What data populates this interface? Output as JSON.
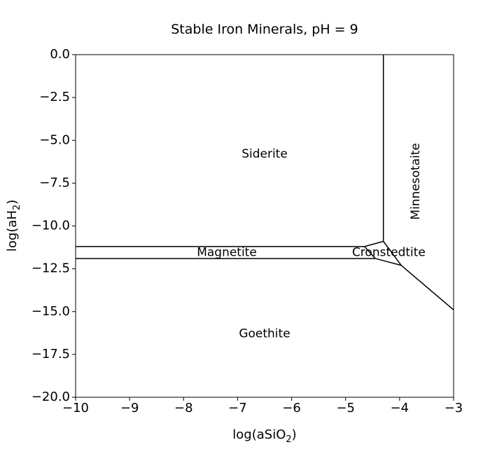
{
  "chart_data": {
    "type": "phase-diagram",
    "title": "Stable Iron Minerals, pH = 9",
    "xlabel_main": "log(aSiO",
    "xlabel_sub": "2",
    "xlabel_end": ")",
    "ylabel_main": "log(aH",
    "ylabel_sub": "2",
    "ylabel_end": ")",
    "xlim": [
      -10,
      -3
    ],
    "ylim": [
      -20,
      0
    ],
    "xticks": [
      -10,
      -9,
      -8,
      -7,
      -6,
      -5,
      -4,
      -3
    ],
    "xtick_labels": [
      "−10",
      "−9",
      "−8",
      "−7",
      "−6",
      "−5",
      "−4",
      "−3"
    ],
    "yticks": [
      0,
      -2.5,
      -5,
      -7.5,
      -10,
      -12.5,
      -15,
      -17.5,
      -20
    ],
    "ytick_labels": [
      "0.0",
      "−2.5",
      "−5.0",
      "−7.5",
      "−10.0",
      "−12.5",
      "−15.0",
      "−17.5",
      "−20.0"
    ],
    "boundaries": [
      [
        [
          -10,
          -11.2
        ],
        [
          -4.65,
          -11.2
        ]
      ],
      [
        [
          -10,
          -11.9
        ],
        [
          -4.45,
          -11.9
        ]
      ],
      [
        [
          -4.3,
          0
        ],
        [
          -4.3,
          -10.9
        ]
      ],
      [
        [
          -4.3,
          -10.9
        ],
        [
          -4.65,
          -11.2
        ]
      ],
      [
        [
          -4.65,
          -11.2
        ],
        [
          -4.45,
          -11.9
        ]
      ],
      [
        [
          -4.45,
          -11.9
        ],
        [
          -3.97,
          -12.3
        ]
      ],
      [
        [
          -4.3,
          -10.9
        ],
        [
          -3.97,
          -12.3
        ]
      ],
      [
        [
          -3.97,
          -12.3
        ],
        [
          -3,
          -14.9
        ]
      ]
    ],
    "regions": [
      {
        "name": "Siderite",
        "x": -6.5,
        "y": -5.8,
        "rotate": 0
      },
      {
        "name": "Magnetite",
        "x": -7.2,
        "y": -11.55,
        "rotate": 0
      },
      {
        "name": "Cronstedtite",
        "x": -4.2,
        "y": -11.55,
        "rotate": 0
      },
      {
        "name": "Minnesotaite",
        "x": -3.7,
        "y": -7.4,
        "rotate": -90
      },
      {
        "name": "Goethite",
        "x": -6.5,
        "y": -16.3,
        "rotate": 0
      }
    ]
  }
}
